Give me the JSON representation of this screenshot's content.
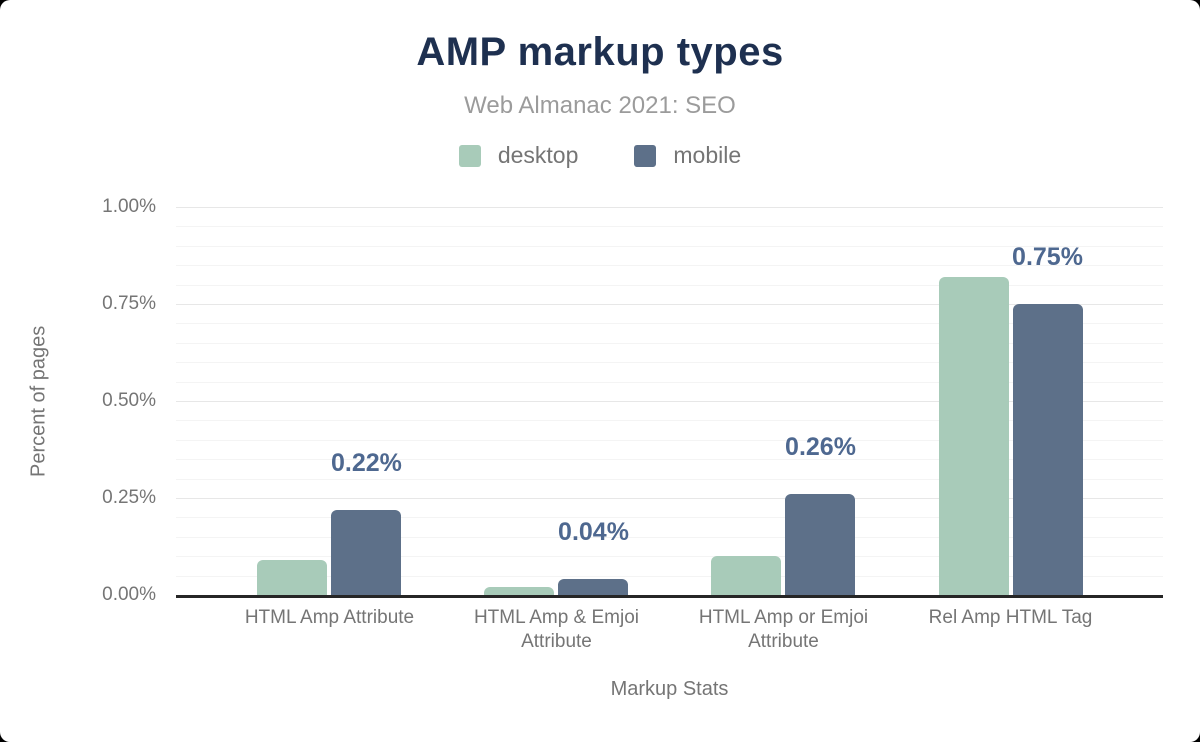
{
  "header": {
    "title": "AMP markup types",
    "subtitle": "Web Almanac 2021: SEO"
  },
  "legend": [
    {
      "label": "desktop",
      "color": "#a8cbb9"
    },
    {
      "label": "mobile",
      "color": "#5d7089"
    }
  ],
  "colors": {
    "desktop": "#a8cbb9",
    "mobile": "#5d7089",
    "title_text": "#1e3050",
    "subtitle_text": "#9b9b9b",
    "axis_text": "#757575",
    "data_label_text": "#4e6890",
    "axis_line": "#262626",
    "grid_major": "#e7e7e7",
    "grid_minor": "#f4f4f4"
  },
  "chart_data": {
    "type": "bar",
    "title": "AMP markup types",
    "subtitle": "Web Almanac 2021: SEO",
    "xlabel": "Markup Stats",
    "ylabel": "Percent of pages",
    "categories": [
      "HTML Amp Attribute",
      "HTML Amp & Emjoi Attribute",
      "HTML Amp or Emjoi Attribute",
      "Rel Amp HTML Tag"
    ],
    "series": [
      {
        "name": "desktop",
        "values": [
          0.09,
          0.02,
          0.1,
          0.82
        ]
      },
      {
        "name": "mobile",
        "values": [
          0.22,
          0.04,
          0.26,
          0.75
        ]
      }
    ],
    "bar_labels": [
      "0.22%",
      "0.04%",
      "0.26%",
      "0.75%"
    ],
    "bar_labels_series": "mobile",
    "ylim": [
      0,
      1.0
    ],
    "yticks": [
      "0.00%",
      "0.25%",
      "0.50%",
      "0.75%",
      "1.00%"
    ],
    "ytick_values": [
      0,
      0.25,
      0.5,
      0.75,
      1.0
    ],
    "minor_grid_step": 0.05,
    "grid": true,
    "legend_position": "top"
  }
}
